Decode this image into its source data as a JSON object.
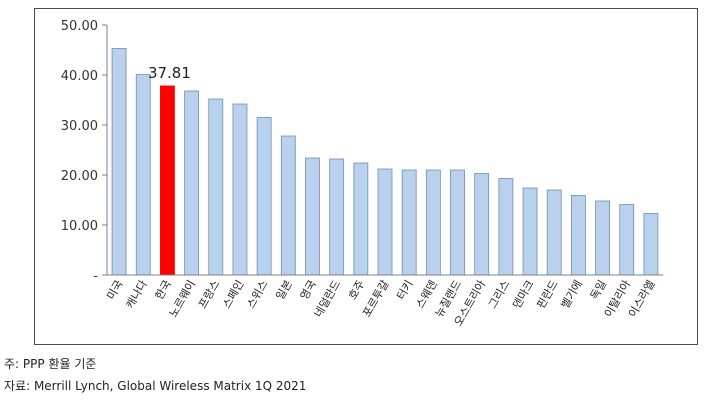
{
  "chart_data": {
    "type": "bar",
    "title": "",
    "xlabel": "",
    "ylabel": "",
    "ylim": [
      0,
      50
    ],
    "yticks": [
      "-",
      "10.00",
      "20.00",
      "30.00",
      "40.00",
      "50.00"
    ],
    "categories": [
      "미국",
      "캐나다",
      "한국",
      "노르웨이",
      "프랑스",
      "스페인",
      "스위스",
      "일본",
      "영국",
      "네덜란드",
      "호주",
      "포르투갈",
      "터키",
      "스웨덴",
      "뉴질랜드",
      "오스트리아",
      "그리스",
      "덴마크",
      "핀란드",
      "벨기에",
      "독일",
      "이탈리아",
      "이스라엘"
    ],
    "values": [
      45.3,
      40.1,
      37.81,
      36.8,
      35.2,
      34.2,
      31.5,
      27.8,
      23.4,
      23.2,
      22.4,
      21.2,
      21.0,
      21.0,
      21.0,
      20.3,
      19.3,
      17.4,
      17.0,
      15.9,
      14.8,
      14.1,
      12.3
    ],
    "highlight_index": 2,
    "highlight_label": "37.81",
    "bar_color": "#b9d1ec",
    "bar_border": "#6d8fb8",
    "highlight_color": "#ff0000"
  },
  "notes": {
    "line1": "주: PPP 환율 기준",
    "line2": "자료: Merrill Lynch, Global Wireless Matrix 1Q 2021"
  }
}
